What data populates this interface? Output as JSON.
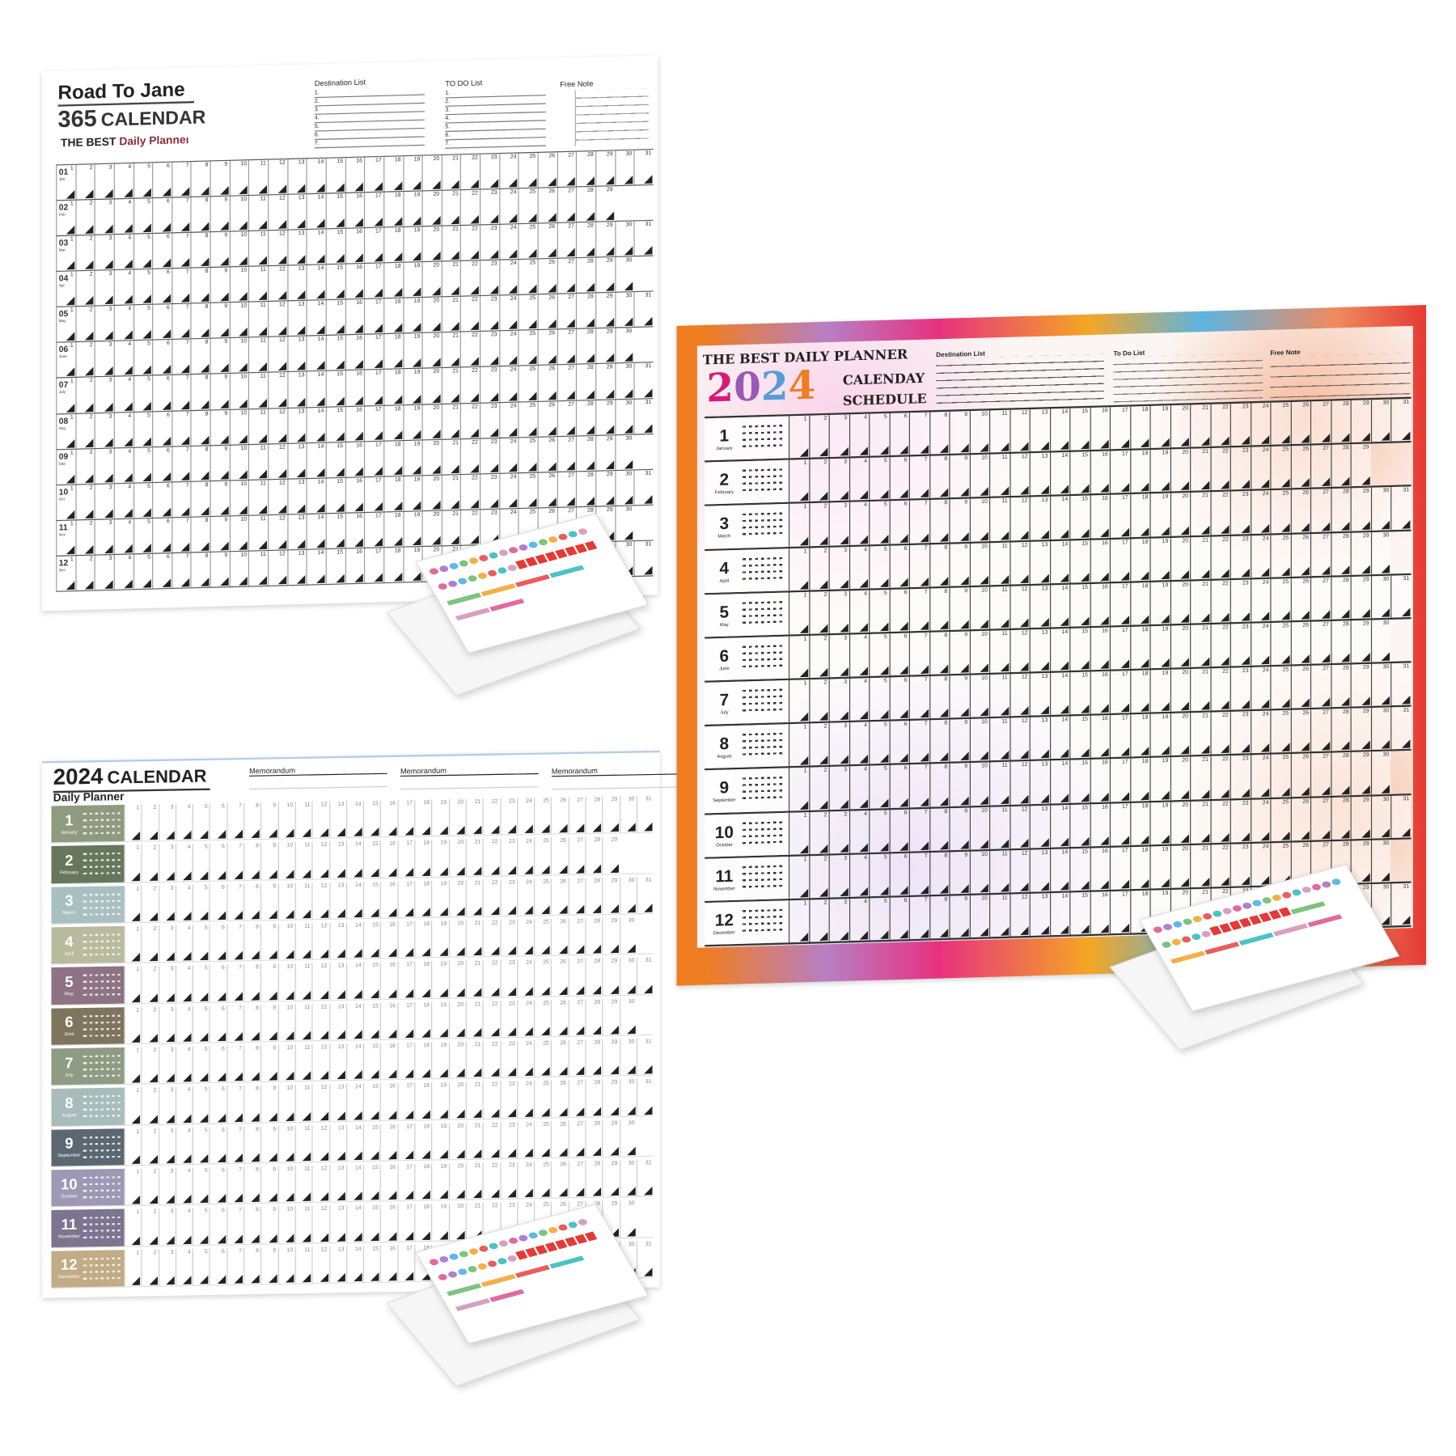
{
  "calendar_1": {
    "title": "Road To Jane",
    "subtitle_number": "365",
    "subtitle_word": "CALENDAR",
    "tagline_prefix": "THE BEST",
    "tagline_accent": "Daily Planneı",
    "accent_color": "#8b2b3b",
    "destination_list": {
      "label": "Destination List",
      "items": [
        "1.",
        "2.",
        "3.",
        "4.",
        "5.",
        "6.",
        "7."
      ]
    },
    "todo_list": {
      "label": "TO DO List",
      "items": [
        "1.",
        "2.",
        "3.",
        "4.",
        "5.",
        "6.",
        "7."
      ]
    },
    "free_note": {
      "label": "Free Note"
    },
    "months": [
      {
        "num": "01",
        "abbr": "Jan"
      },
      {
        "num": "02",
        "abbr": "Feb"
      },
      {
        "num": "03",
        "abbr": "Mar"
      },
      {
        "num": "04",
        "abbr": "Apr"
      },
      {
        "num": "05",
        "abbr": "May"
      },
      {
        "num": "06",
        "abbr": "June"
      },
      {
        "num": "07",
        "abbr": "July"
      },
      {
        "num": "08",
        "abbr": "Aug"
      },
      {
        "num": "09",
        "abbr": "Sep"
      },
      {
        "num": "10",
        "abbr": "Oct"
      },
      {
        "num": "11",
        "abbr": "Nov"
      },
      {
        "num": "12",
        "abbr": "Dec"
      }
    ]
  },
  "calendar_2": {
    "title_year": "2024",
    "title_word": "CALENDAR",
    "subtitle": "Daily Planner",
    "memo_labels": [
      "Memorandum",
      "Memorandum",
      "Memorandum"
    ],
    "months": [
      {
        "num": "1",
        "name": "January",
        "color": "#8f9b7f"
      },
      {
        "num": "2",
        "name": "February",
        "color": "#66775c"
      },
      {
        "num": "3",
        "name": "March",
        "color": "#a9c0c1"
      },
      {
        "num": "4",
        "name": "April",
        "color": "#b8bb9d"
      },
      {
        "num": "5",
        "name": "May",
        "color": "#8d7384"
      },
      {
        "num": "6",
        "name": "June",
        "color": "#7f745d"
      },
      {
        "num": "7",
        "name": "July",
        "color": "#8e9c83"
      },
      {
        "num": "8",
        "name": "August",
        "color": "#a8bcbb"
      },
      {
        "num": "9",
        "name": "September",
        "color": "#5b6771"
      },
      {
        "num": "10",
        "name": "October",
        "color": "#9d98b4"
      },
      {
        "num": "11",
        "name": "November",
        "color": "#7d7490"
      },
      {
        "num": "12",
        "name": "December",
        "color": "#c1ac85"
      }
    ]
  },
  "calendar_3": {
    "headline": "THE BEST DAILY PLANNER",
    "year_digits": [
      {
        "d": "2",
        "color": "#d81b7a"
      },
      {
        "d": "0",
        "color": "#9b59b6"
      },
      {
        "d": "2",
        "color": "#5b9bd5"
      },
      {
        "d": "4",
        "color": "#ee7d22"
      }
    ],
    "line_1": "CALENDAY",
    "line_2": "SCHEDULE",
    "destination_label": "Destination List",
    "todo_label": "To Do List",
    "free_note_label": "Free Note",
    "months": [
      "January",
      "February",
      "March",
      "April",
      "May",
      "June",
      "July",
      "August",
      "September",
      "October",
      "November",
      "December"
    ]
  },
  "days_in_month": [
    31,
    29,
    31,
    30,
    31,
    30,
    31,
    31,
    30,
    31,
    30,
    31
  ]
}
